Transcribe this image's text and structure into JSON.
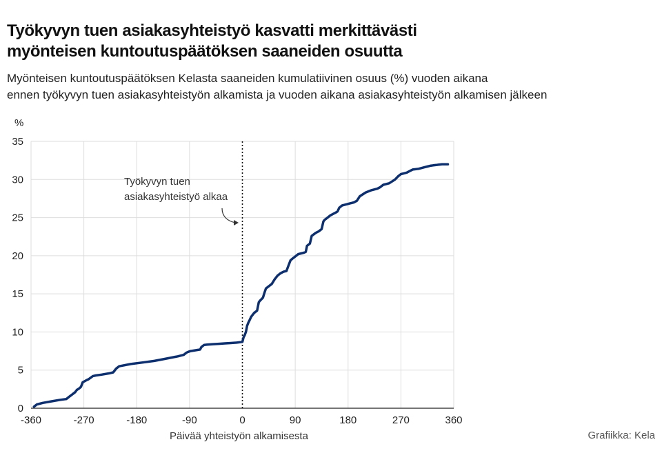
{
  "header": {
    "title_line1": "Työkyvyn tuen asiakasyhteistyö kasvatti merkittävästi",
    "title_line2": "myönteisen kuntoutuspäätöksen saaneiden osuutta",
    "subtitle_line1": "Myönteisen kuntoutuspäätöksen Kelasta saaneiden kumulatiivinen osuus (%) vuoden aikana",
    "subtitle_line2": "ennen työkyvyn tuen asiakasyhteistyön alkamista ja vuoden aikana asiakasyhteistyön alkamisen jälkeen"
  },
  "source": "Grafiikka: Kela",
  "colors": {
    "line": "#0d2f6e",
    "grid": "#dddddd",
    "marker": "#111111"
  },
  "chart_data": {
    "type": "line",
    "xlabel": "Päivää yhteistyön alkamisesta",
    "ylabel": "%",
    "xlim": [
      -360,
      360
    ],
    "ylim": [
      0,
      35
    ],
    "xticks": [
      -360,
      -270,
      -180,
      -90,
      0,
      90,
      180,
      270,
      360
    ],
    "yticks": [
      0,
      5,
      10,
      15,
      20,
      25,
      30,
      35
    ],
    "grid": true,
    "annotation": {
      "text_line1": "Työkyvyn tuen",
      "text_line2": "asiakasyhteistyö alkaa",
      "x": 0
    },
    "series": [
      {
        "x": [
          -355,
          -350,
          -340,
          -325,
          -310,
          -300,
          -295,
          -290,
          -285,
          -282,
          -278,
          -275,
          -272,
          -265,
          -262,
          -255,
          -250,
          -240,
          -225,
          -220,
          -215,
          -210,
          -190,
          -170,
          -150,
          -130,
          -110,
          -100,
          -95,
          -92,
          -88,
          -80,
          -72,
          -70,
          -67,
          -65,
          -60,
          -50,
          -40,
          -30,
          -20,
          -10,
          0,
          2,
          4,
          6,
          8,
          10,
          12,
          15,
          20,
          25,
          28,
          30,
          35,
          37,
          40,
          45,
          50,
          55,
          60,
          65,
          70,
          75,
          78,
          82,
          85,
          90,
          95,
          100,
          105,
          108,
          110,
          115,
          118,
          125,
          130,
          135,
          138,
          140,
          145,
          150,
          155,
          160,
          162,
          165,
          170,
          180,
          190,
          195,
          200,
          210,
          220,
          225,
          230,
          235,
          240,
          250,
          260,
          265,
          270,
          275,
          280,
          285,
          290,
          300,
          305,
          310,
          315,
          320,
          325,
          330,
          335,
          340,
          350
        ],
        "y": [
          0.2,
          0.5,
          0.7,
          0.9,
          1.1,
          1.2,
          1.5,
          1.8,
          2.1,
          2.4,
          2.6,
          2.8,
          3.4,
          3.7,
          3.8,
          4.2,
          4.3,
          4.4,
          4.6,
          4.7,
          5.2,
          5.5,
          5.8,
          6.0,
          6.2,
          6.5,
          6.8,
          7.0,
          7.3,
          7.4,
          7.5,
          7.6,
          7.7,
          8.0,
          8.2,
          8.3,
          8.35,
          8.4,
          8.45,
          8.5,
          8.55,
          8.6,
          8.7,
          9.3,
          9.6,
          10.0,
          10.8,
          11.2,
          11.5,
          12.0,
          12.5,
          12.8,
          13.9,
          14.1,
          14.5,
          15.0,
          15.7,
          16.0,
          16.3,
          16.9,
          17.4,
          17.7,
          17.9,
          18.0,
          18.6,
          19.4,
          19.6,
          19.9,
          20.2,
          20.3,
          20.4,
          20.5,
          21.3,
          21.6,
          22.6,
          23.0,
          23.2,
          23.5,
          24.5,
          24.7,
          25.0,
          25.3,
          25.5,
          25.7,
          25.8,
          26.3,
          26.6,
          26.8,
          27.0,
          27.2,
          27.8,
          28.3,
          28.6,
          28.7,
          28.8,
          29.0,
          29.3,
          29.5,
          30.0,
          30.4,
          30.7,
          30.8,
          30.9,
          31.1,
          31.3,
          31.4,
          31.5,
          31.6,
          31.7,
          31.8,
          31.85,
          31.9,
          31.95,
          32.0,
          32.0
        ],
        "color": "#0d2f6e"
      }
    ]
  }
}
